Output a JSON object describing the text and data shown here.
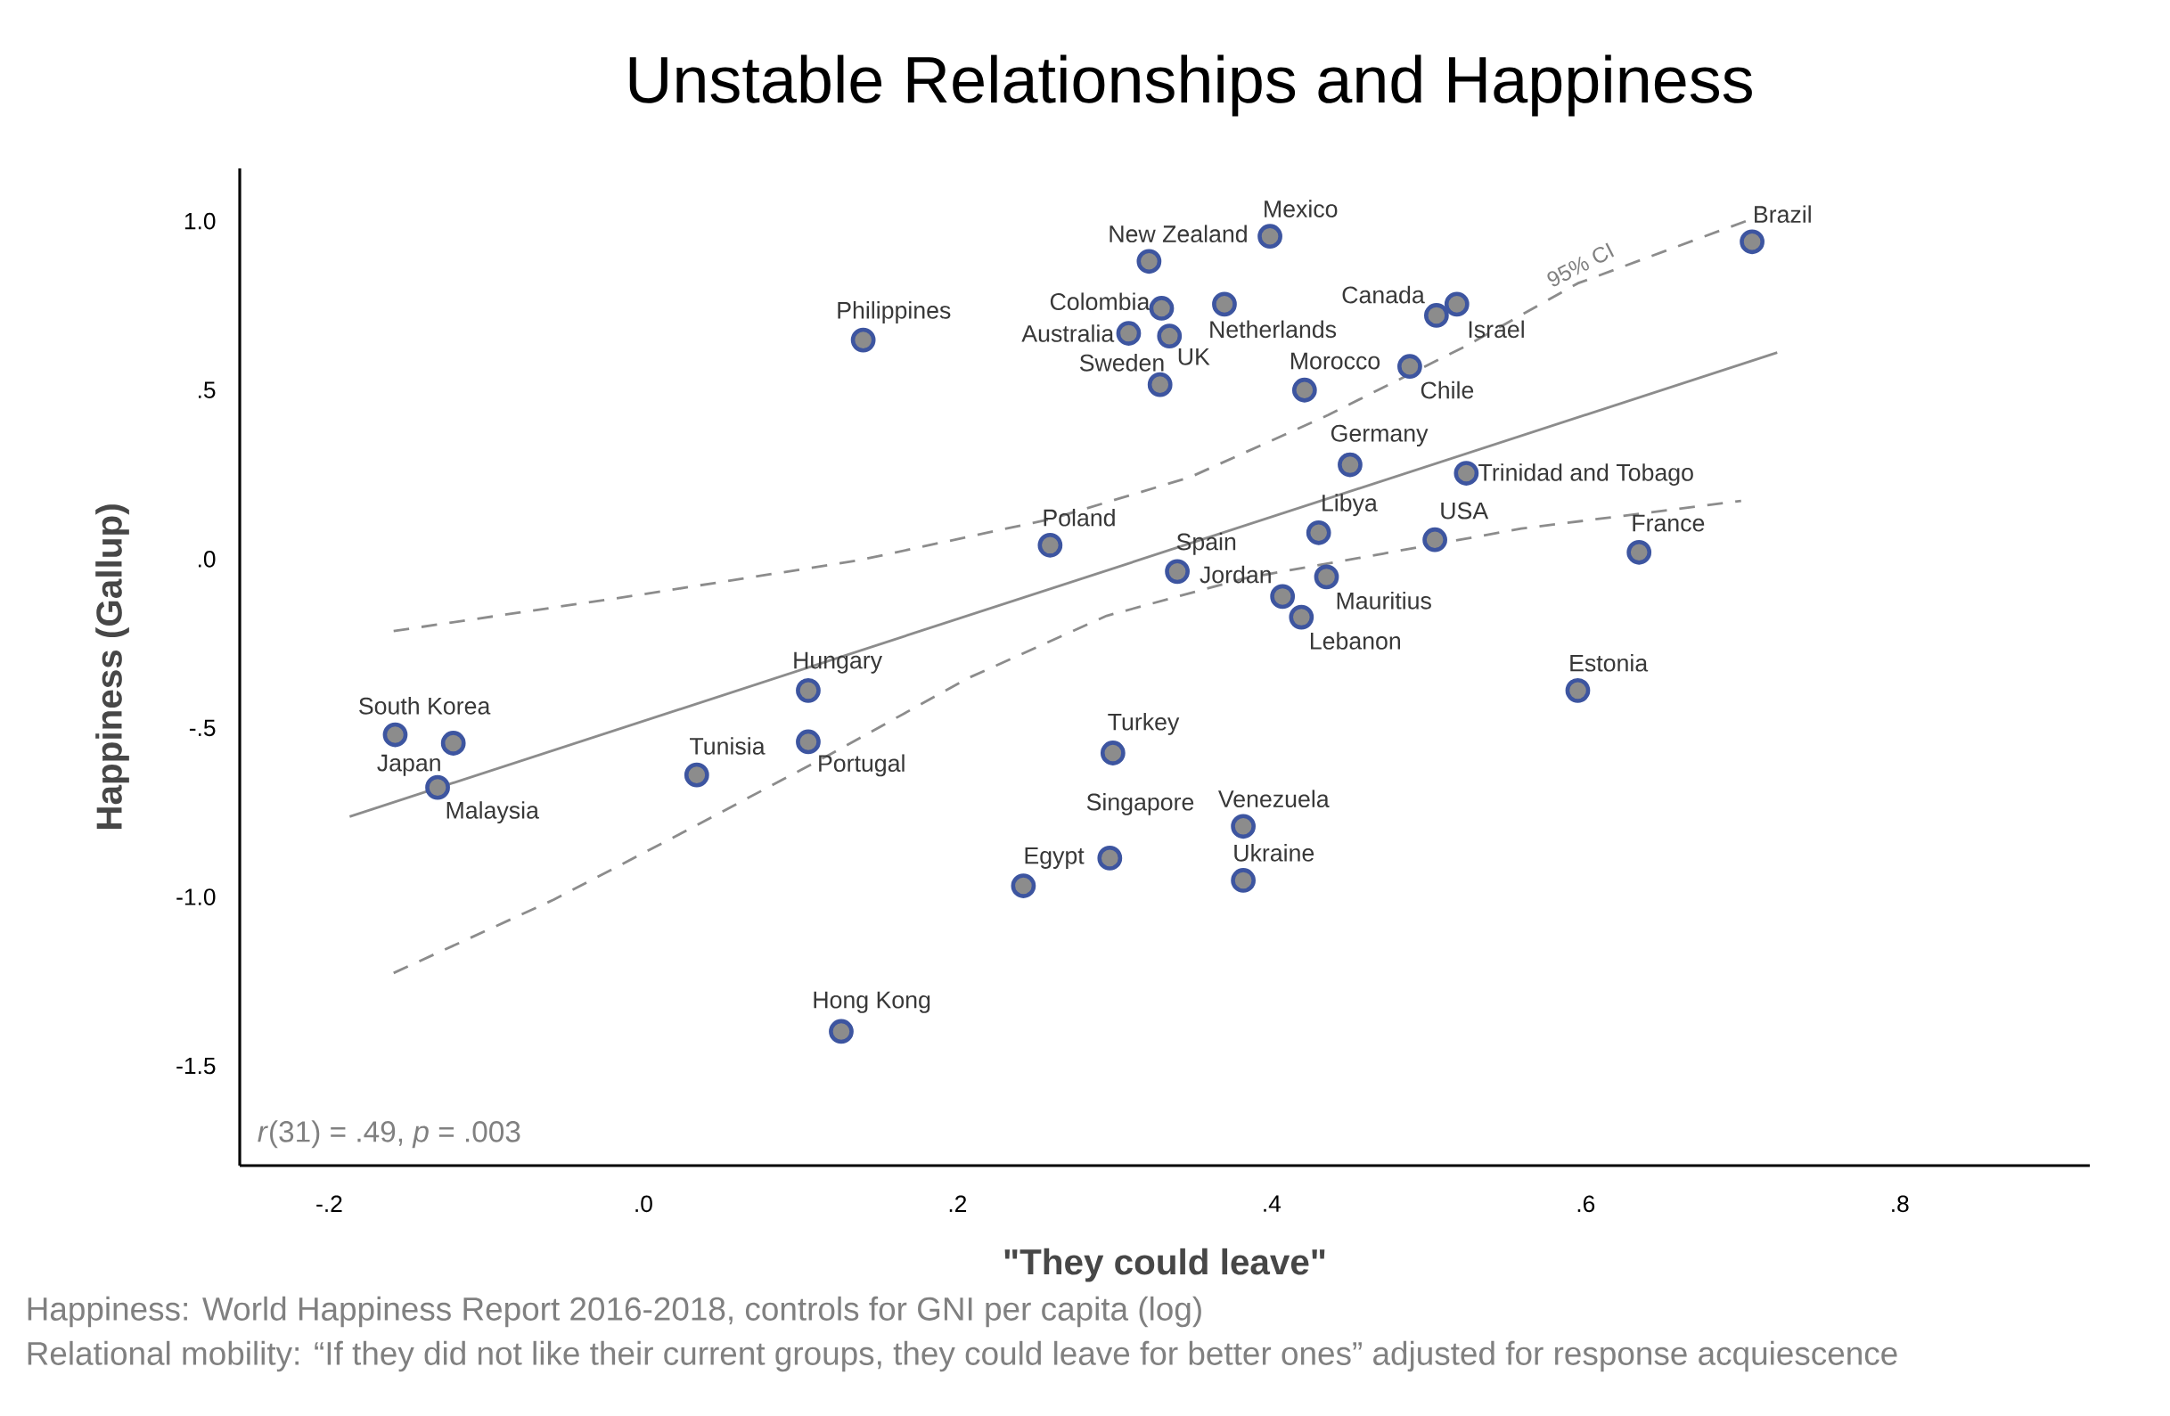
{
  "chart_data": {
    "type": "scatter",
    "title": "Unstable Relationships and Happiness",
    "xlabel": "\"They could leave\"",
    "ylabel": "Happiness (Gallup)",
    "xlim": [
      -0.257,
      0.921
    ],
    "ylim": [
      -1.795,
      1.156
    ],
    "xticks": [
      {
        "value": -0.2,
        "label": "-.2"
      },
      {
        "value": 0,
        "label": ".0"
      },
      {
        "value": 0.2,
        "label": ".2"
      },
      {
        "value": 0.4,
        "label": ".4"
      },
      {
        "value": 0.6,
        "label": ".6"
      },
      {
        "value": 0.8,
        "label": ".8"
      }
    ],
    "yticks": [
      {
        "value": 1,
        "label": "1.0"
      },
      {
        "value": 0.5,
        "label": ".5"
      },
      {
        "value": 0,
        "label": ".0"
      },
      {
        "value": -0.5,
        "label": "-.5"
      },
      {
        "value": -1,
        "label": "-1.0"
      },
      {
        "value": -1.5,
        "label": "-1.5"
      }
    ],
    "series": [
      {
        "marker": "circle",
        "color": "#8c8c8c",
        "x": [
          -0.158,
          -0.121,
          -0.131,
          0.105,
          0.105,
          0.034,
          0.126,
          0.14,
          0.259,
          0.242,
          0.297,
          0.299,
          0.382,
          0.382,
          0.322,
          0.399,
          0.33,
          0.37,
          0.309,
          0.335,
          0.329,
          0.421,
          0.505,
          0.518,
          0.488,
          0.45,
          0.524,
          0.43,
          0.504,
          0.34,
          0.407,
          0.435,
          0.419,
          0.634,
          0.595,
          0.706
        ],
        "values": [
          -0.52,
          -0.545,
          -0.676,
          -0.389,
          -0.541,
          -0.639,
          -1.398,
          0.648,
          0.041,
          -0.967,
          -0.885,
          -0.574,
          -0.791,
          -0.951,
          0.881,
          0.955,
          0.742,
          0.754,
          0.668,
          0.66,
          0.516,
          0.5,
          0.721,
          0.754,
          0.57,
          0.279,
          0.254,
          0.078,
          0.057,
          -0.037,
          -0.111,
          -0.053,
          -0.172,
          0.02,
          -0.389,
          0.939
        ]
      },
      {
        "type": "line",
        "marker": "none",
        "color": "#8c8c8c",
        "line_style": "solid",
        "x": [
          -0.187,
          0.722
        ],
        "values": [
          -0.762,
          0.611
        ]
      },
      {
        "type": "line",
        "marker": "none",
        "color": "#8c8c8c",
        "line_style": "dashed",
        "x": [
          -0.159,
          -0.004,
          0.137,
          0.26,
          0.348,
          0.436,
          0.524,
          0.595,
          0.702
        ],
        "values": [
          -0.213,
          -0.107,
          -0.004,
          0.119,
          0.242,
          0.426,
          0.631,
          0.816,
          1.0
        ]
      },
      {
        "type": "line",
        "marker": "none",
        "color": "#8c8c8c",
        "line_style": "dashed",
        "x": [
          -0.159,
          -0.057,
          0.031,
          0.119,
          0.207,
          0.295,
          0.383,
          0.471,
          0.559,
          0.699
        ],
        "values": [
          -1.225,
          -1.008,
          -0.795,
          -0.578,
          -0.352,
          -0.168,
          -0.057,
          0.016,
          0.09,
          0.172
        ]
      }
    ],
    "annotations": [
      {
        "text": "South Korea",
        "x": -0.158,
        "y": -0.52
      },
      {
        "text": "Japan",
        "x": -0.121,
        "y": -0.545
      },
      {
        "text": "Malaysia",
        "x": -0.131,
        "y": -0.676
      },
      {
        "text": "Hungary",
        "x": 0.105,
        "y": -0.389
      },
      {
        "text": "Portugal",
        "x": 0.105,
        "y": -0.541
      },
      {
        "text": "Tunisia",
        "x": 0.034,
        "y": -0.639
      },
      {
        "text": "Hong Kong",
        "x": 0.126,
        "y": -1.398
      },
      {
        "text": "Philippines",
        "x": 0.14,
        "y": 0.648
      },
      {
        "text": "Poland",
        "x": 0.259,
        "y": 0.041
      },
      {
        "text": "Egypt",
        "x": 0.242,
        "y": -0.967
      },
      {
        "text": "Singapore",
        "x": 0.297,
        "y": -0.885
      },
      {
        "text": "Turkey",
        "x": 0.299,
        "y": -0.574
      },
      {
        "text": "Venezuela",
        "x": 0.382,
        "y": -0.791
      },
      {
        "text": "Ukraine",
        "x": 0.382,
        "y": -0.951
      },
      {
        "text": "New Zealand",
        "x": 0.322,
        "y": 0.881
      },
      {
        "text": "Mexico",
        "x": 0.399,
        "y": 0.955
      },
      {
        "text": "Colombia",
        "x": 0.33,
        "y": 0.742
      },
      {
        "text": "Netherlands",
        "x": 0.37,
        "y": 0.754
      },
      {
        "text": "Australia",
        "x": 0.309,
        "y": 0.668
      },
      {
        "text": "UK",
        "x": 0.335,
        "y": 0.66
      },
      {
        "text": "Sweden",
        "x": 0.329,
        "y": 0.516
      },
      {
        "text": "Morocco",
        "x": 0.421,
        "y": 0.5
      },
      {
        "text": "Canada",
        "x": 0.505,
        "y": 0.721
      },
      {
        "text": "Israel",
        "x": 0.518,
        "y": 0.754
      },
      {
        "text": "Chile",
        "x": 0.488,
        "y": 0.57
      },
      {
        "text": "Germany",
        "x": 0.45,
        "y": 0.279
      },
      {
        "text": "Trinidad and Tobago",
        "x": 0.524,
        "y": 0.254
      },
      {
        "text": "Libya",
        "x": 0.43,
        "y": 0.078
      },
      {
        "text": "USA",
        "x": 0.504,
        "y": 0.057
      },
      {
        "text": "Spain",
        "x": 0.34,
        "y": -0.037
      },
      {
        "text": "Jordan",
        "x": 0.407,
        "y": -0.111
      },
      {
        "text": "Mauritius",
        "x": 0.435,
        "y": -0.053
      },
      {
        "text": "Lebanon",
        "x": 0.419,
        "y": -0.172
      },
      {
        "text": "France",
        "x": 0.634,
        "y": 0.02
      },
      {
        "text": "Estonia",
        "x": 0.595,
        "y": -0.389
      },
      {
        "text": "Brazil",
        "x": 0.706,
        "y": 0.939
      },
      {
        "text": "95% CI",
        "x": 0.6,
        "y": 0.84
      },
      "*r*(31) = .49, *p* = .003",
      "Happiness: World Happiness Report 2016-2018, controls for GNI per capita (log)",
      "Relational mobility: “If they did not like their current groups, they could leave for better ones” adjusted for response acquiescence"
    ]
  }
}
